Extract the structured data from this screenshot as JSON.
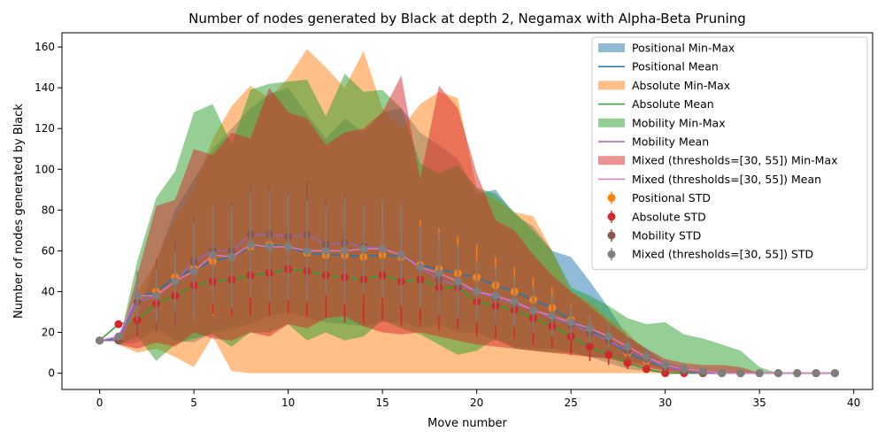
{
  "chart_data": {
    "type": "line",
    "title": "Number of nodes generated by Black at depth 2, Negamax with Alpha-Beta Pruning",
    "xlabel": "Move number",
    "ylabel": "Number of nodes generated by Black",
    "xlim": [
      -2,
      41
    ],
    "ylim": [
      -8,
      167
    ],
    "xticks": [
      0,
      5,
      10,
      15,
      20,
      25,
      30,
      35,
      40
    ],
    "yticks": [
      0,
      20,
      40,
      60,
      80,
      100,
      120,
      140,
      160
    ],
    "grid": false,
    "legend_position": "top-right",
    "x": [
      0,
      1,
      2,
      3,
      4,
      5,
      6,
      7,
      8,
      9,
      10,
      11,
      12,
      13,
      14,
      15,
      16,
      17,
      18,
      19,
      20,
      21,
      22,
      23,
      24,
      25,
      26,
      27,
      28,
      29,
      30,
      31,
      32,
      33,
      34,
      35,
      36,
      37,
      38,
      39
    ],
    "series": [
      {
        "name": "Positional",
        "color": "#1f77b4",
        "markerColor": "#ff7f0e",
        "mean": [
          16,
          17,
          37,
          40,
          47,
          51,
          55,
          57,
          62,
          63,
          62,
          59,
          58,
          58,
          57,
          58,
          57,
          53,
          51,
          49,
          47,
          43,
          40,
          36,
          32,
          26,
          21,
          16,
          10,
          6,
          3,
          1,
          0,
          0,
          0,
          0,
          0,
          0,
          0,
          0
        ],
        "min": [
          16,
          14,
          15,
          22,
          16,
          15,
          20,
          22,
          24,
          28,
          30,
          27,
          25,
          24,
          23,
          25,
          25,
          22,
          24,
          20,
          20,
          16,
          13,
          12,
          12,
          10,
          8,
          5,
          2,
          1,
          0,
          0,
          0,
          0,
          0,
          0,
          0,
          0,
          0,
          0
        ],
        "max": [
          16,
          14,
          30,
          55,
          80,
          95,
          110,
          120,
          130,
          137,
          140,
          127,
          115,
          125,
          118,
          128,
          130,
          118,
          112,
          105,
          88,
          90,
          78,
          72,
          60,
          57,
          45,
          32,
          18,
          12,
          5,
          3,
          0,
          0,
          0,
          0,
          0,
          0,
          0,
          0
        ],
        "std": [
          0,
          2,
          12,
          14,
          15,
          24,
          27,
          25,
          25,
          25,
          26,
          26,
          25,
          25,
          24,
          25,
          24,
          22,
          20,
          18,
          16,
          14,
          12,
          11,
          10,
          8,
          7,
          6,
          5,
          3,
          2,
          1,
          0,
          0,
          0,
          0,
          0,
          0,
          0,
          0
        ]
      },
      {
        "name": "Absolute",
        "color": "#ff7f0e",
        "markerColor": "#d62728",
        "mean": [
          16,
          24,
          26,
          34,
          38,
          43,
          45,
          46,
          48,
          49,
          51,
          50,
          48,
          47,
          46,
          48,
          45,
          46,
          42,
          42,
          35,
          33,
          31,
          27,
          23,
          18,
          13,
          9,
          5,
          2,
          0,
          0,
          0,
          0,
          0,
          0,
          0,
          0,
          0,
          0
        ],
        "min": [
          16,
          14,
          10,
          12,
          8,
          3,
          18,
          1,
          0,
          0,
          0,
          0,
          0,
          0,
          0,
          0,
          0,
          0,
          0,
          0,
          0,
          0,
          0,
          0,
          0,
          0,
          0,
          0,
          0,
          0,
          0,
          0,
          0,
          0,
          0,
          0,
          0,
          0,
          0,
          0
        ],
        "max": [
          16,
          14,
          40,
          55,
          75,
          90,
          115,
          131,
          141,
          135,
          145,
          159,
          150,
          140,
          158,
          130,
          120,
          132,
          138,
          135,
          90,
          85,
          79,
          77,
          60,
          40,
          35,
          27,
          20,
          10,
          3,
          1,
          0,
          0,
          0,
          0,
          0,
          0,
          0,
          0
        ],
        "std": [
          0,
          0,
          8,
          12,
          14,
          15,
          16,
          18,
          20,
          21,
          22,
          22,
          21,
          22,
          22,
          22,
          22,
          22,
          21,
          20,
          17,
          16,
          14,
          13,
          11,
          9,
          7,
          5,
          3,
          1,
          0,
          0,
          0,
          0,
          0,
          0,
          0,
          0,
          0,
          0
        ]
      },
      {
        "name": "Mobility",
        "color": "#2ca02c",
        "markerColor": "#8c564b",
        "mean": [
          16,
          16,
          35,
          38,
          45,
          55,
          60,
          60,
          68,
          68,
          67,
          68,
          63,
          64,
          62,
          61,
          58,
          52,
          46,
          43,
          40,
          37,
          34,
          31,
          27,
          24,
          20,
          16,
          11,
          7,
          3,
          1,
          0,
          0,
          0,
          0,
          0,
          0,
          0,
          0
        ],
        "min": [
          16,
          14,
          18,
          6,
          14,
          17,
          19,
          13,
          20,
          20,
          24,
          16,
          20,
          16,
          18,
          26,
          22,
          19,
          14,
          9,
          11,
          17,
          12,
          11,
          10,
          10,
          8,
          8,
          6,
          4,
          2,
          1,
          0,
          0,
          0,
          0,
          0,
          0,
          0,
          0
        ],
        "max": [
          16,
          14,
          55,
          86,
          99,
          128,
          132,
          112,
          139,
          142,
          143,
          144,
          126,
          147,
          138,
          139,
          130,
          103,
          98,
          102,
          91,
          88,
          79,
          70,
          60,
          42,
          38,
          33,
          27,
          24,
          25,
          19,
          17,
          14,
          11,
          3,
          0,
          0,
          0,
          0
        ],
        "std": [
          0,
          0,
          14,
          18,
          20,
          22,
          22,
          24,
          24,
          24,
          22,
          26,
          22,
          24,
          22,
          24,
          22,
          20,
          18,
          16,
          15,
          14,
          12,
          10,
          9,
          8,
          7,
          6,
          5,
          4,
          2,
          1,
          0,
          0,
          0,
          0,
          0,
          0,
          0,
          0
        ]
      },
      {
        "name": "Mixed (thresholds=[30, 55])",
        "color": "#9467bd",
        "markerColor": "#7f7f7f",
        "mean": [
          16,
          18,
          38,
          38,
          45,
          50,
          58,
          57,
          63,
          62,
          62,
          60,
          60,
          60,
          61,
          61,
          58,
          52,
          49,
          45,
          40,
          38,
          35,
          31,
          28,
          25,
          22,
          18,
          13,
          8,
          4,
          2,
          1,
          0,
          0,
          0,
          0,
          0,
          0,
          0
        ],
        "min": [
          16,
          14,
          12,
          15,
          13,
          20,
          17,
          16,
          20,
          18,
          24,
          22,
          27,
          28,
          23,
          20,
          19,
          20,
          18,
          16,
          14,
          13,
          12,
          11,
          10,
          9,
          8,
          7,
          5,
          3,
          1,
          0,
          0,
          0,
          0,
          0,
          0,
          0,
          0,
          0
        ],
        "max": [
          16,
          14,
          48,
          82,
          85,
          110,
          107,
          118,
          115,
          140,
          128,
          125,
          112,
          118,
          120,
          128,
          146,
          95,
          141,
          130,
          98,
          75,
          70,
          58,
          48,
          40,
          33,
          25,
          18,
          12,
          7,
          5,
          4,
          4,
          3,
          0,
          0,
          0,
          0,
          0
        ],
        "std": [
          0,
          0,
          12,
          13,
          15,
          24,
          24,
          25,
          26,
          27,
          26,
          25,
          22,
          26,
          22,
          24,
          25,
          20,
          20,
          18,
          15,
          14,
          12,
          11,
          10,
          8,
          7,
          6,
          5,
          4,
          3,
          2,
          1,
          0,
          0,
          0,
          0,
          0,
          0,
          0
        ]
      }
    ],
    "band_colors": [
      "#1f77b4",
      "#ff7f0e",
      "#2ca02c",
      "#d62728"
    ],
    "mean_line_colors": [
      "#1f77b4",
      "#2ca02c",
      "#9467bd",
      "#e377c2"
    ],
    "legend": [
      {
        "label": "Positional Min-Max",
        "kind": "patch",
        "color": "#1f77b4"
      },
      {
        "label": "Positional Mean",
        "kind": "line",
        "color": "#1f77b4"
      },
      {
        "label": "Absolute Min-Max",
        "kind": "patch",
        "color": "#ff7f0e"
      },
      {
        "label": "Absolute Mean",
        "kind": "line",
        "color": "#2ca02c"
      },
      {
        "label": "Mobility Min-Max",
        "kind": "patch",
        "color": "#2ca02c"
      },
      {
        "label": "Mobility Mean",
        "kind": "line",
        "color": "#9467bd"
      },
      {
        "label": "Mixed (thresholds=[30, 55]) Min-Max",
        "kind": "patch",
        "color": "#d62728"
      },
      {
        "label": "Mixed (thresholds=[30, 55]) Mean",
        "kind": "line",
        "color": "#e377c2"
      },
      {
        "label": "Positional STD",
        "kind": "marker",
        "color": "#ff7f0e"
      },
      {
        "label": "Absolute STD",
        "kind": "marker",
        "color": "#d62728"
      },
      {
        "label": "Mobility STD",
        "kind": "marker",
        "color": "#8c564b"
      },
      {
        "label": "Mixed (thresholds=[30, 55]) STD",
        "kind": "marker",
        "color": "#7f7f7f"
      }
    ]
  }
}
